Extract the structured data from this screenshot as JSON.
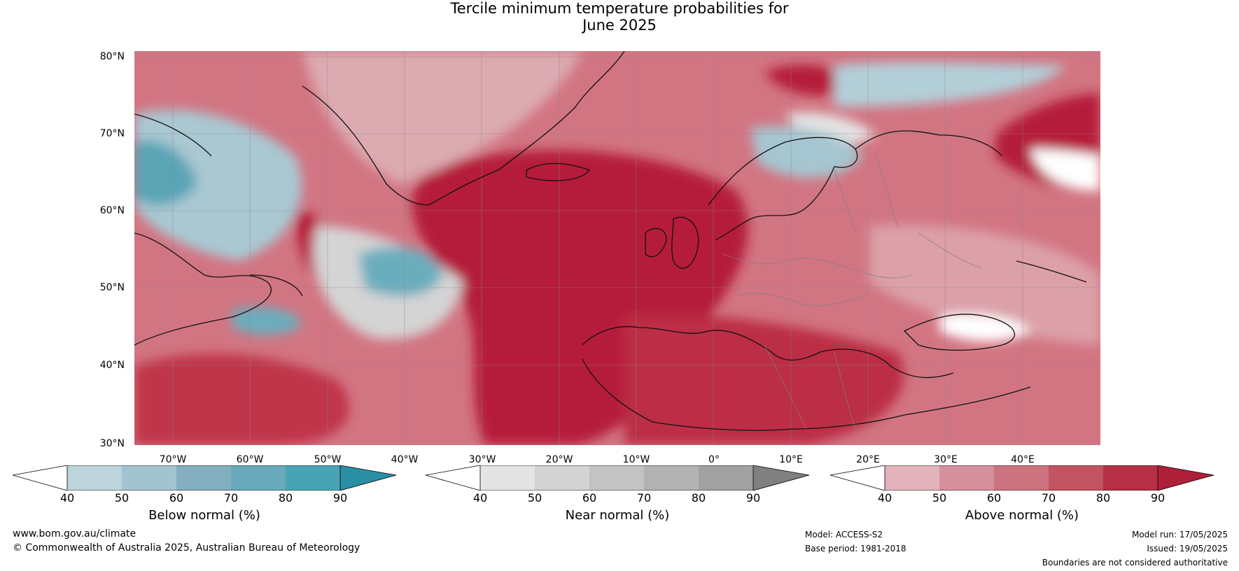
{
  "title": {
    "line1": "Tercile minimum temperature probabilities for",
    "line2": "June 2025"
  },
  "map": {
    "lat_labels": [
      "80°N",
      "70°N",
      "60°N",
      "50°N",
      "40°N",
      "30°N"
    ],
    "lon_labels": [
      "70°W",
      "60°W",
      "50°W",
      "40°W",
      "30°W",
      "20°W",
      "10°W",
      "0°",
      "10°E",
      "20°E",
      "30°E",
      "40°E"
    ],
    "lat_range": [
      30,
      81
    ],
    "lon_range": [
      -77,
      48
    ],
    "colors": {
      "above_strong": "#b51d3a",
      "above_mid": "#c74458",
      "above_light": "#d98a95",
      "below": "#6fb0c0",
      "below_light": "#b9d3dc",
      "near": "#d0d0d0",
      "neutral": "#ffffff",
      "coast": "#111111",
      "border": "#777777"
    }
  },
  "legends": [
    {
      "title": "Below normal (%)",
      "ticks": [
        "40",
        "50",
        "60",
        "70",
        "80",
        "90"
      ],
      "colors": [
        "#ffffff",
        "#bdd4dc",
        "#a3c4cf",
        "#84afc1",
        "#68aabb",
        "#48a3b5",
        "#2a8ea5"
      ]
    },
    {
      "title": "Near normal (%)",
      "ticks": [
        "40",
        "50",
        "60",
        "70",
        "80",
        "90"
      ],
      "colors": [
        "#ffffff",
        "#e4e4e4",
        "#d3d3d3",
        "#c3c3c3",
        "#b2b2b2",
        "#a1a1a1",
        "#808080"
      ]
    },
    {
      "title": "Above normal (%)",
      "ticks": [
        "40",
        "50",
        "60",
        "70",
        "80",
        "90"
      ],
      "colors": [
        "#ffffff",
        "#e2b3ba",
        "#d6909b",
        "#cc737f",
        "#c25361",
        "#b62f44",
        "#b01f3a"
      ]
    }
  ],
  "footer": {
    "website": "www.bom.gov.au/climate",
    "copyright": "© Commonwealth of Australia 2025, Australian Bureau of Meteorology",
    "model": "Model: ACCESS-S2",
    "base_period": "Base period: 1981-2018",
    "model_run": "Model run: 17/05/2025",
    "issued": "Issued: 19/05/2025",
    "disclaimer": "Boundaries are not considered authoritative"
  }
}
